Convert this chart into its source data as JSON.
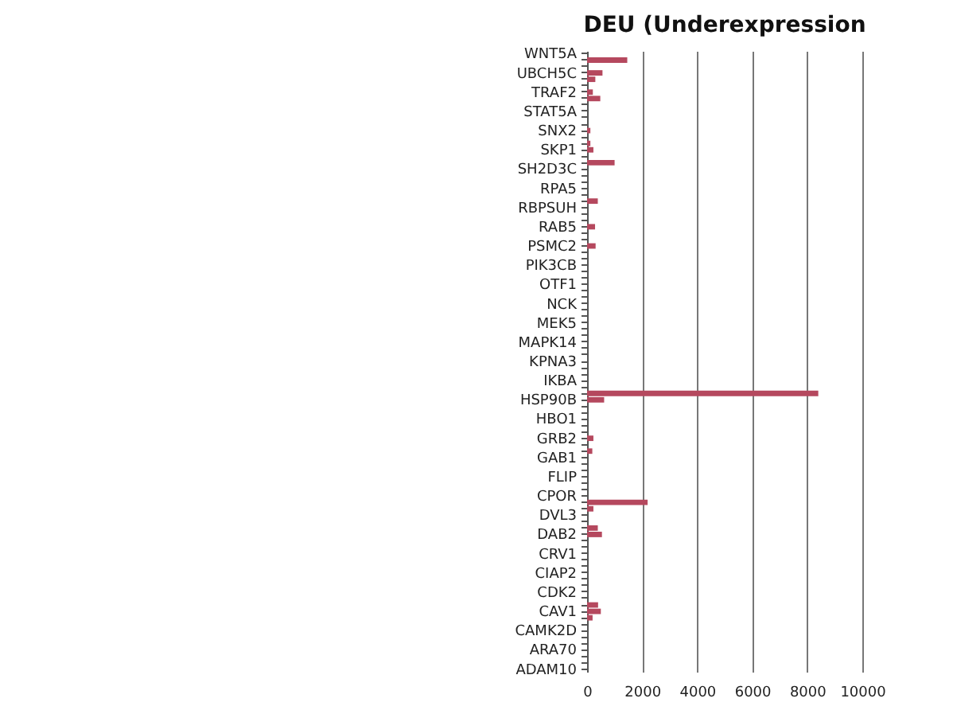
{
  "chart_data": {
    "type": "bar",
    "orientation": "horizontal",
    "title": "DEU (Underexpression",
    "categories": [
      "WNT5A",
      null,
      null,
      "UBCH5C",
      null,
      null,
      "TRAF2",
      null,
      null,
      "STAT5A",
      null,
      null,
      "SNX2",
      null,
      null,
      "SKP1",
      null,
      null,
      "SH2D3C",
      null,
      null,
      "RPA5",
      null,
      null,
      "RBPSUH",
      null,
      null,
      "RAB5",
      null,
      null,
      "PSMC2",
      null,
      null,
      "PIK3CB",
      null,
      null,
      "OTF1",
      null,
      null,
      "NCK",
      null,
      null,
      "MEK5",
      null,
      null,
      "MAPK14",
      null,
      null,
      "KPNA3",
      null,
      null,
      "IKBA",
      null,
      null,
      "HSP90B",
      null,
      null,
      "HBO1",
      null,
      null,
      "GRB2",
      null,
      null,
      "GAB1",
      null,
      null,
      "FLIP",
      null,
      null,
      "CPOR",
      null,
      null,
      "DVL3",
      null,
      null,
      "DAB2",
      null,
      null,
      "CRV1",
      null,
      null,
      "CIAP2",
      null,
      null,
      "CDK2",
      null,
      null,
      "CAV1",
      null,
      null,
      "CAMK2D",
      null,
      null,
      "ARA70",
      null,
      null,
      "ADAM10"
    ],
    "values": [
      0,
      1460,
      0,
      560,
      300,
      0,
      210,
      480,
      0,
      0,
      0,
      0,
      120,
      0,
      120,
      230,
      0,
      1000,
      0,
      0,
      0,
      0,
      0,
      390,
      0,
      0,
      0,
      290,
      0,
      0,
      310,
      0,
      0,
      0,
      0,
      0,
      0,
      0,
      0,
      0,
      0,
      0,
      0,
      0,
      0,
      0,
      0,
      0,
      0,
      0,
      0,
      0,
      0,
      8400,
      620,
      0,
      0,
      0,
      0,
      0,
      230,
      0,
      190,
      0,
      0,
      0,
      0,
      0,
      0,
      0,
      2200,
      230,
      0,
      0,
      390,
      540,
      0,
      0,
      0,
      0,
      0,
      0,
      0,
      0,
      0,
      0,
      400,
      500,
      200,
      0,
      0,
      0,
      0,
      0,
      0,
      0,
      0
    ],
    "color": "#b5485e",
    "xlim": [
      0,
      10000
    ],
    "xticks": [
      0,
      2000,
      4000,
      6000,
      8000,
      10000
    ],
    "grid": "x"
  }
}
